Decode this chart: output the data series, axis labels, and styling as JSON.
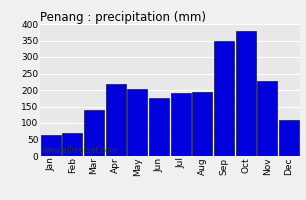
{
  "title": "Penang : precipitation (mm)",
  "months": [
    "Jan",
    "Feb",
    "Mar",
    "Apr",
    "May",
    "Jun",
    "Jul",
    "Aug",
    "Sep",
    "Oct",
    "Nov",
    "Dec"
  ],
  "values": [
    65,
    70,
    140,
    218,
    203,
    175,
    190,
    195,
    350,
    378,
    228,
    110
  ],
  "bar_color": "#0000dd",
  "bar_edge_color": "#000000",
  "ylim": [
    0,
    400
  ],
  "yticks": [
    0,
    50,
    100,
    150,
    200,
    250,
    300,
    350,
    400
  ],
  "plot_bg_color": "#e8e8e8",
  "fig_bg_color": "#f0f0f0",
  "grid_color": "#ffffff",
  "watermark": "www.allmetsat.com",
  "title_fontsize": 8.5,
  "tick_fontsize": 6.5,
  "watermark_fontsize": 5.5
}
